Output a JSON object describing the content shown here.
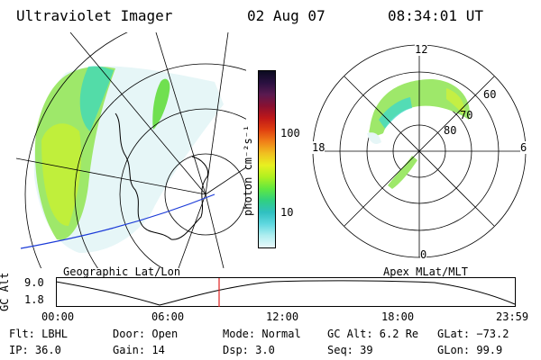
{
  "header": {
    "title": "Ultraviolet Imager",
    "date": "02 Aug 07",
    "time": "08:34:01 UT"
  },
  "colorbar": {
    "unit_label": "photon cm⁻²s⁻¹",
    "ticks": [
      "100",
      "10"
    ],
    "colors": [
      "#0b0b20",
      "#2a1040",
      "#5a1a50",
      "#8a1030",
      "#c01818",
      "#e04010",
      "#f08018",
      "#f0c020",
      "#e8f020",
      "#b0f020",
      "#60e840",
      "#30d080",
      "#30c0c0",
      "#60d8e0",
      "#b0eef0",
      "#e8f8fa"
    ]
  },
  "left_map": {
    "caption": "Geographic Lat/Lon"
  },
  "right_map": {
    "caption": "Apex MLat/MLT",
    "mlt_labels": {
      "top": "12",
      "left": "18",
      "right": "6",
      "bottom": "0"
    },
    "lat_labels": [
      "60",
      "70",
      "80"
    ]
  },
  "timeline": {
    "ylabel": "GC Alt",
    "y_ticks": [
      "9.0",
      "1.8"
    ],
    "x_ticks": [
      "00:00",
      "06:00",
      "12:00",
      "18:00",
      "23:59"
    ],
    "marker_time": "08:34",
    "marker_color": "#e02020"
  },
  "status": {
    "flt": "Flt: LBHL",
    "ip": "IP: 36.0",
    "door": "Door: Open",
    "gain": "Gain: 14",
    "mode": "Mode: Normal",
    "dsp": "Dsp:    3.0",
    "gcalt": "GC Alt: 6.2 Re",
    "seq": "Seq: 39",
    "glat": "GLat: −73.2",
    "glon": "GLon:  99.9"
  }
}
